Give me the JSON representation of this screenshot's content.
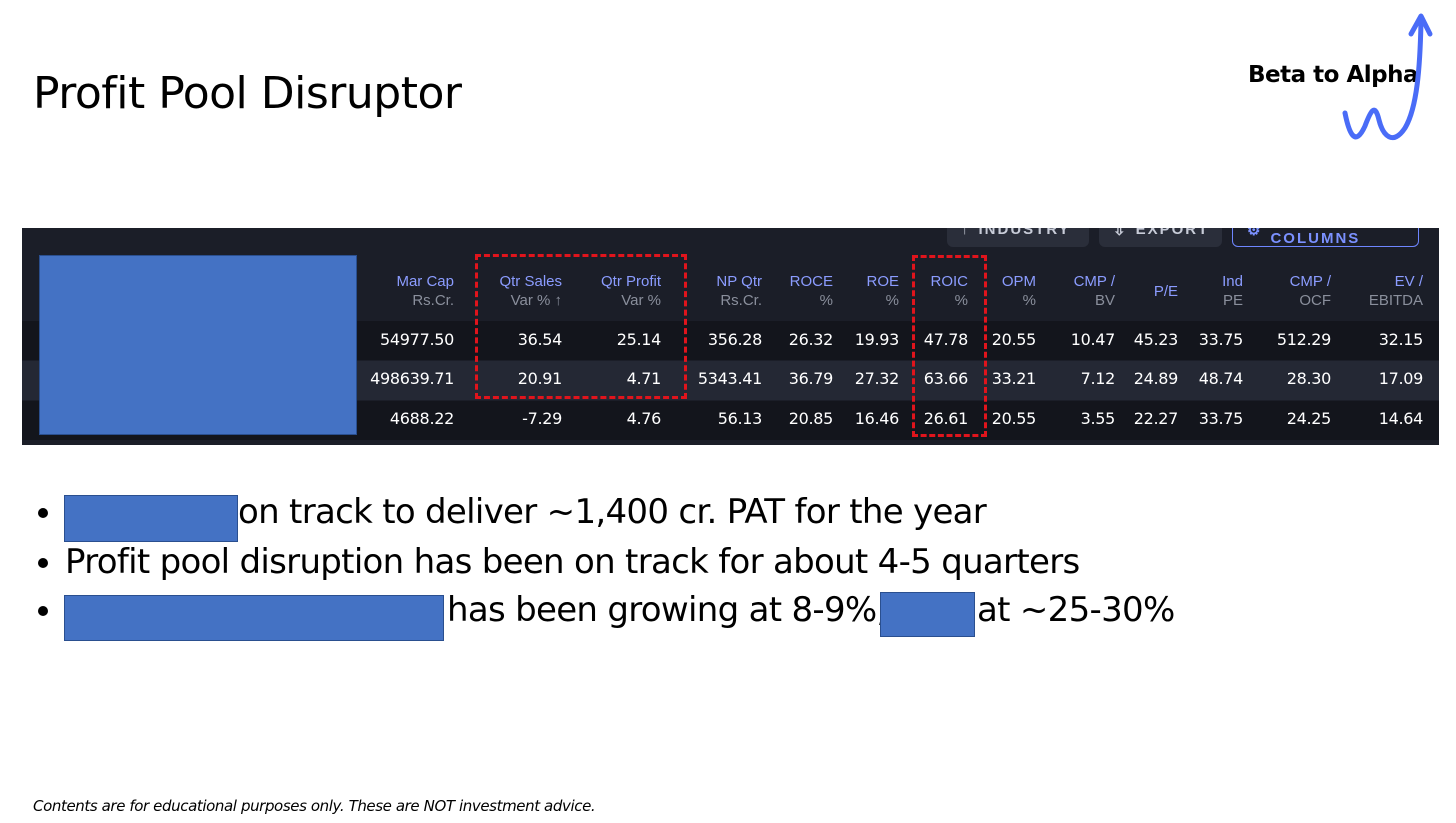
{
  "slide": {
    "title": "Profit Pool Disruptor",
    "brand": "Beta to Alpha",
    "footer": "Contents are for educational purposes only. These are NOT investment advice."
  },
  "toolbar": {
    "industry_label": "INDUSTRY",
    "export_label": "EXPORT",
    "edit_columns_label": "EDIT COLUMNS"
  },
  "table": {
    "headers": [
      {
        "l1": "Mar Cap",
        "l2": "Rs.Cr."
      },
      {
        "l1": "Qtr Sales",
        "l2": "Var % ↑"
      },
      {
        "l1": "Qtr Profit",
        "l2": "Var %"
      },
      {
        "l1": "NP Qtr",
        "l2": "Rs.Cr."
      },
      {
        "l1": "ROCE",
        "l2": "%"
      },
      {
        "l1": "ROE",
        "l2": "%"
      },
      {
        "l1": "ROIC",
        "l2": "%"
      },
      {
        "l1": "OPM",
        "l2": "%"
      },
      {
        "l1": "CMP /",
        "l2": "BV"
      },
      {
        "l1": "P/E",
        "l2": ""
      },
      {
        "l1": "Ind",
        "l2": "PE"
      },
      {
        "l1": "CMP /",
        "l2": "OCF"
      },
      {
        "l1": "EV /",
        "l2": "EBITDA"
      }
    ],
    "rows": [
      [
        "54977.50",
        "36.54",
        "25.14",
        "356.28",
        "26.32",
        "19.93",
        "47.78",
        "20.55",
        "10.47",
        "45.23",
        "33.75",
        "512.29",
        "32.15"
      ],
      [
        "498639.71",
        "20.91",
        "4.71",
        "5343.41",
        "36.79",
        "27.32",
        "63.66",
        "33.21",
        "7.12",
        "24.89",
        "48.74",
        "28.30",
        "17.09"
      ],
      [
        "4688.22",
        "-7.29",
        "4.76",
        "56.13",
        "20.85",
        "16.46",
        "26.61",
        "20.55",
        "3.55",
        "22.27",
        "33.75",
        "24.25",
        "14.64"
      ]
    ]
  },
  "bullets": [
    "on track to deliver ~1,400 cr. PAT for the year",
    "Profit pool disruption has been on track for about 4-5 quarters",
    "has been growing at 8-9%,",
    "at ~25-30%"
  ],
  "colors": {
    "redaction": "#4472c4",
    "panel_bg": "#1b1e28",
    "header_text": "#8b9cff",
    "highlight_dash": "#e0141c",
    "brand_arrow": "#4a6cf7"
  }
}
